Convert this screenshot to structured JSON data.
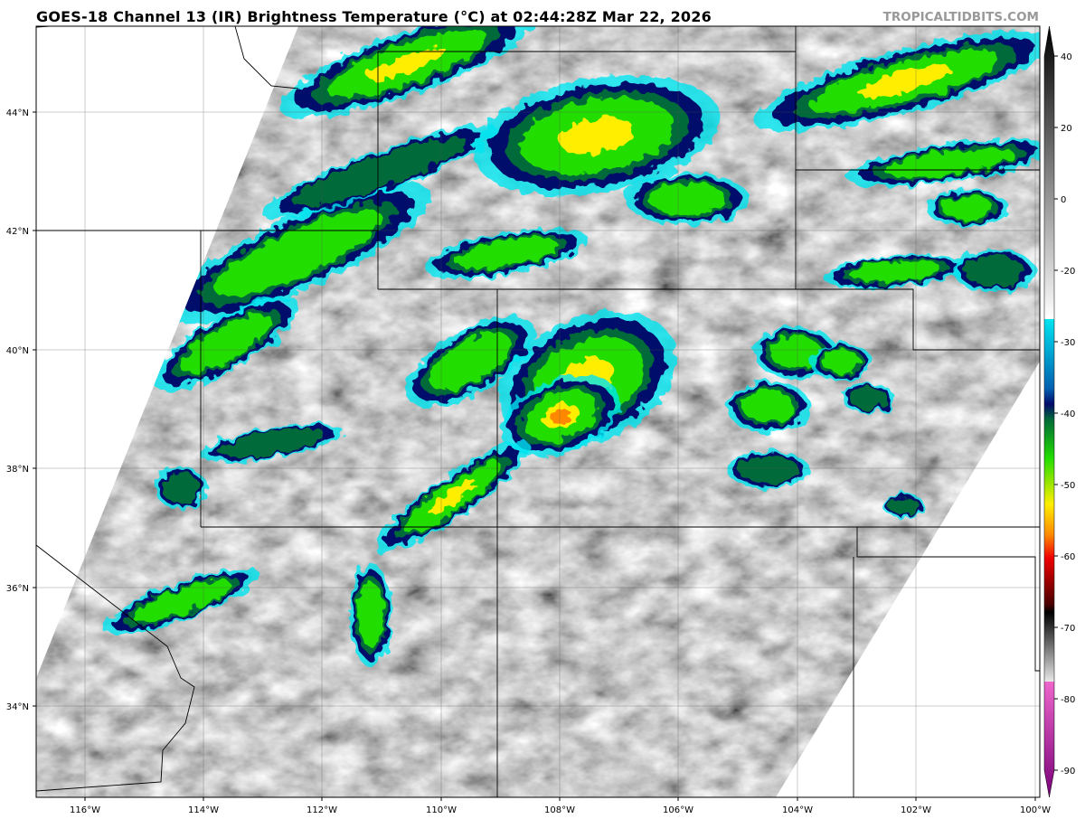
{
  "title": "GOES-18 Channel 13 (IR) Brightness Temperature (°C) at 02:44:28Z Mar 22, 2026",
  "watermark": "TROPICALTIDBITS.COM",
  "map": {
    "lat_labels": [
      "44°N",
      "42°N",
      "40°N",
      "38°N",
      "36°N",
      "34°N"
    ],
    "lon_labels": [
      "116°W",
      "114°W",
      "112°W",
      "110°W",
      "108°W",
      "106°W",
      "104°W",
      "102°W",
      "100°W"
    ],
    "background_color": "#ffffff",
    "imagery_gray": "#9a9a9a"
  },
  "colorbar": {
    "ticks": [
      "40",
      "20",
      "0",
      "-20",
      "-30",
      "-40",
      "-50",
      "-60",
      "-70",
      "-80",
      "-90"
    ],
    "units": "°C",
    "range": [
      -95,
      45
    ],
    "colors": {
      "warm_gray": [
        "#000000",
        "#ffffff"
      ],
      "cyan": "#00e5f0",
      "blue": "#003a9a",
      "navy": "#000a6a",
      "dark_green": "#006a3a",
      "green": "#22dd00",
      "yellow": "#ffee00",
      "orange": "#ff8800",
      "red": "#ee0000",
      "dark_red": "#5a0000",
      "black": "#000000",
      "pink": "#ee66cc",
      "purple": "#770077"
    }
  }
}
